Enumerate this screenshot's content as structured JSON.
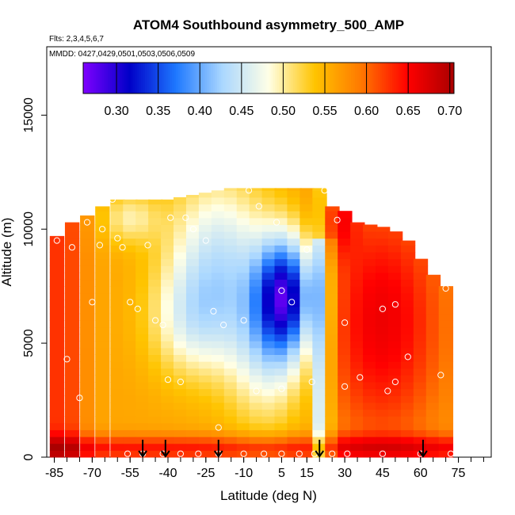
{
  "chart_data": {
    "type": "heatmap",
    "title": "ATOM4 Southbound asymmetry_500_AMP",
    "flights_label": "Flts: 2,3,4,5,6,7",
    "dates_label": "MMDD: 0427,0429,0501,0503,0506,0509",
    "xlabel": "Latitude (deg N)",
    "ylabel": "Altitude (m)",
    "xlim": [
      -88,
      88
    ],
    "ylim": [
      0,
      18000
    ],
    "x_ticks": [
      -85,
      -70,
      -55,
      -40,
      -25,
      -10,
      5,
      15,
      30,
      45,
      60,
      75
    ],
    "y_ticks": [
      0,
      5000,
      10000,
      15000
    ],
    "colorbar": {
      "min": 0.26,
      "max": 0.705,
      "ticks": [
        "0.30",
        "0.35",
        "0.40",
        "0.45",
        "0.50",
        "0.55",
        "0.60",
        "0.65",
        "0.70"
      ],
      "colors": [
        "#7f00ff",
        "#0000c8",
        "#1e78ff",
        "#aad7ff",
        "#ffffe6",
        "#ffc400",
        "#ff7800",
        "#ff0000",
        "#aa0000"
      ]
    },
    "profiles": [
      {
        "lat": -84,
        "alt_max": 9700
      },
      {
        "lat": -78,
        "alt_max": 10300
      },
      {
        "lat": -72,
        "alt_max": 10600
      },
      {
        "lat": -66,
        "alt_max": 11000
      },
      {
        "lat": -60,
        "alt_max": 11300
      },
      {
        "lat": -55,
        "alt_max": 11300
      },
      {
        "lat": -50,
        "alt_max": 11300
      },
      {
        "lat": -45,
        "alt_max": 11300
      },
      {
        "lat": -40,
        "alt_max": 11300
      },
      {
        "lat": -35,
        "alt_max": 11400
      },
      {
        "lat": -30,
        "alt_max": 11500
      },
      {
        "lat": -25,
        "alt_max": 11600
      },
      {
        "lat": -20,
        "alt_max": 11700
      },
      {
        "lat": -15,
        "alt_max": 11800
      },
      {
        "lat": -10,
        "alt_max": 11800
      },
      {
        "lat": -5,
        "alt_max": 11800
      },
      {
        "lat": 0,
        "alt_max": 11800
      },
      {
        "lat": 5,
        "alt_max": 11800
      },
      {
        "lat": 10,
        "alt_max": 11800
      },
      {
        "lat": 15,
        "alt_max": 11800
      },
      {
        "lat": 20,
        "alt_max": 11800
      },
      {
        "lat": 25,
        "alt_max": 11000
      },
      {
        "lat": 30,
        "alt_max": 10800
      },
      {
        "lat": 35,
        "alt_max": 10300
      },
      {
        "lat": 40,
        "alt_max": 10200
      },
      {
        "lat": 45,
        "alt_max": 10100
      },
      {
        "lat": 50,
        "alt_max": 9900
      },
      {
        "lat": 55,
        "alt_max": 9500
      },
      {
        "lat": 60,
        "alt_max": 8700
      },
      {
        "lat": 65,
        "alt_max": 8000
      },
      {
        "lat": 70,
        "alt_max": 7500
      }
    ],
    "sample_points": [
      {
        "lat": -84,
        "alt": 9500
      },
      {
        "lat": -78,
        "alt": 9200
      },
      {
        "lat": -72,
        "alt": 10300
      },
      {
        "lat": -70,
        "alt": 6800
      },
      {
        "lat": -67,
        "alt": 9300
      },
      {
        "lat": -66,
        "alt": 10000
      },
      {
        "lat": -62,
        "alt": 11300
      },
      {
        "lat": -60,
        "alt": 9600
      },
      {
        "lat": -58,
        "alt": 9200
      },
      {
        "lat": -55,
        "alt": 6800
      },
      {
        "lat": -52,
        "alt": 6500
      },
      {
        "lat": -48,
        "alt": 9300
      },
      {
        "lat": -45,
        "alt": 6000
      },
      {
        "lat": -42,
        "alt": 5800
      },
      {
        "lat": -39,
        "alt": 10500
      },
      {
        "lat": -33,
        "alt": 10500
      },
      {
        "lat": -30,
        "alt": 10000
      },
      {
        "lat": -25,
        "alt": 9500
      },
      {
        "lat": -22,
        "alt": 6400
      },
      {
        "lat": -18,
        "alt": 5800
      },
      {
        "lat": -10,
        "alt": 6000
      },
      {
        "lat": -8,
        "alt": 11700
      },
      {
        "lat": -4,
        "alt": 11000
      },
      {
        "lat": 3,
        "alt": 10300
      },
      {
        "lat": 5,
        "alt": 7300
      },
      {
        "lat": 9,
        "alt": 6800
      },
      {
        "lat": 15,
        "alt": 9100
      },
      {
        "lat": 17,
        "alt": 3300
      },
      {
        "lat": 22,
        "alt": 11700
      },
      {
        "lat": 27,
        "alt": 10400
      },
      {
        "lat": 30,
        "alt": 5900
      },
      {
        "lat": 36,
        "alt": 3500
      },
      {
        "lat": 45,
        "alt": 6500
      },
      {
        "lat": 50,
        "alt": 6700
      },
      {
        "lat": 47,
        "alt": 2900
      },
      {
        "lat": 55,
        "alt": 4400
      },
      {
        "lat": 68,
        "alt": 3600
      },
      {
        "lat": 70,
        "alt": 7400
      },
      {
        "lat": -80,
        "alt": 4300
      },
      {
        "lat": -75,
        "alt": 2600
      },
      {
        "lat": -40,
        "alt": 3400
      },
      {
        "lat": -35,
        "alt": 3300
      },
      {
        "lat": -20,
        "alt": 1300
      },
      {
        "lat": -5,
        "alt": 2900
      },
      {
        "lat": 5,
        "alt": 3000
      },
      {
        "lat": 30,
        "alt": 3100
      },
      {
        "lat": 50,
        "alt": 3300
      },
      {
        "lat": -56,
        "alt": 150
      },
      {
        "lat": -50,
        "alt": 150
      },
      {
        "lat": -42,
        "alt": 150
      },
      {
        "lat": -35,
        "alt": 150
      },
      {
        "lat": -28,
        "alt": 150
      },
      {
        "lat": -20,
        "alt": 150
      },
      {
        "lat": -10,
        "alt": 150
      },
      {
        "lat": -2,
        "alt": 150
      },
      {
        "lat": 5,
        "alt": 150
      },
      {
        "lat": 12,
        "alt": 150
      },
      {
        "lat": 18,
        "alt": 150
      },
      {
        "lat": 25,
        "alt": 150
      },
      {
        "lat": 31,
        "alt": 150
      },
      {
        "lat": 45,
        "alt": 150
      },
      {
        "lat": 60,
        "alt": 150
      },
      {
        "lat": 72,
        "alt": 150
      }
    ],
    "arrow_latitudes": [
      -50,
      -41,
      -20,
      20,
      61
    ],
    "grid": false,
    "legend": "top"
  }
}
